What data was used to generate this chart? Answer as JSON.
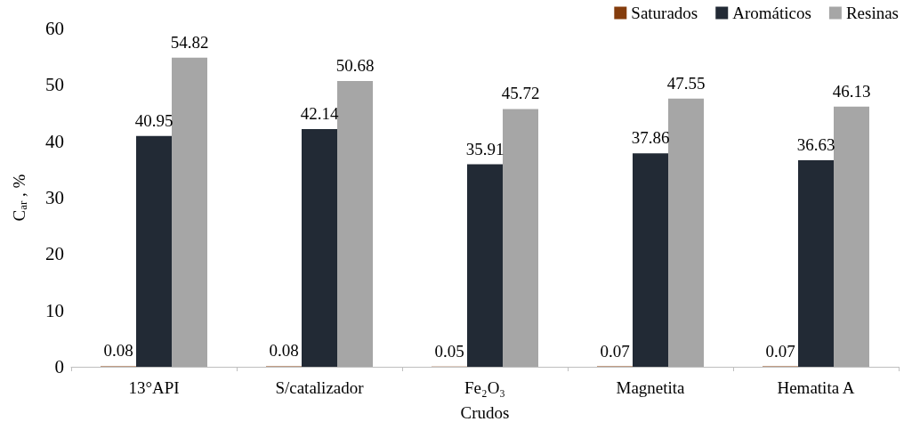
{
  "chart_data": {
    "type": "bar",
    "categories": [
      "13°API",
      "S/catalizador",
      "Fe₂O₃",
      "Magnetita",
      "Hematita A"
    ],
    "series": [
      {
        "name": "Saturados",
        "color": "#843c0c",
        "values": [
          0.08,
          0.08,
          0.05,
          0.07,
          0.07
        ]
      },
      {
        "name": "Aromáticos",
        "color": "#222a35",
        "values": [
          40.95,
          42.14,
          35.91,
          37.86,
          36.63
        ]
      },
      {
        "name": "Resinas",
        "color": "#a6a6a6",
        "values": [
          54.82,
          50.68,
          45.72,
          47.55,
          46.13
        ]
      }
    ],
    "xlabel": "Crudos",
    "ylabel": "C$_{ar}$ , %",
    "ylim": [
      0,
      60
    ],
    "yticks": [
      0,
      10,
      20,
      30,
      40,
      50,
      60
    ],
    "grid": false,
    "legend": "top right",
    "data_labels": true
  }
}
